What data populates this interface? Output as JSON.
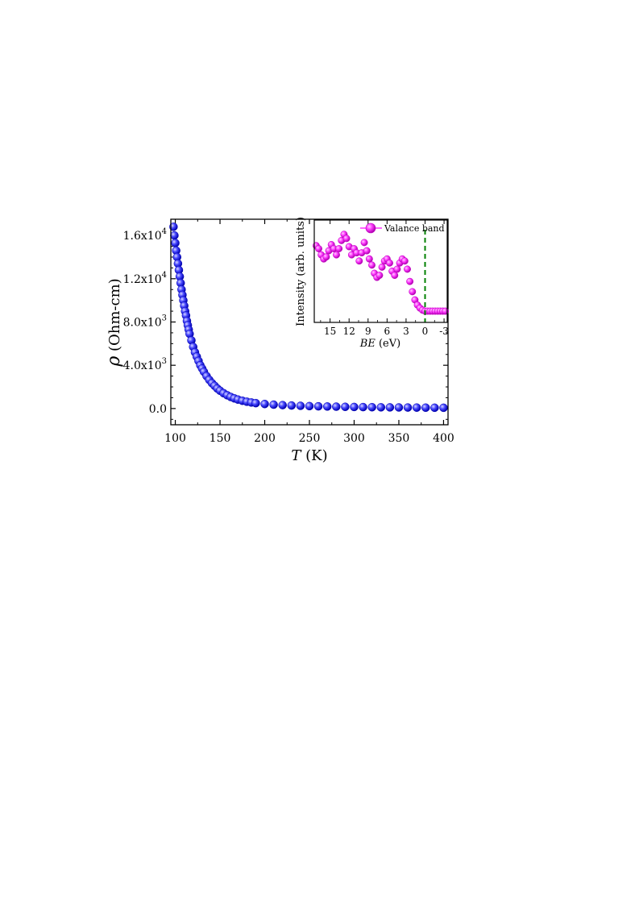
{
  "chart_data": [
    {
      "type": "scatter",
      "xlabel": {
        "italic": "T",
        "rest": " (K)"
      },
      "ylabel": {
        "italic": "ρ",
        "rest": " (Ohm-cm)"
      },
      "xlim": [
        95,
        405
      ],
      "ylim": [
        -1500,
        17500
      ],
      "x_ticks": [
        100,
        150,
        200,
        250,
        300,
        350,
        400
      ],
      "x_tick_labels": [
        "100",
        "150",
        "200",
        "250",
        "300",
        "350",
        "400"
      ],
      "y_ticks": [
        0,
        4000,
        8000,
        12000,
        16000
      ],
      "y_tick_labels": [
        {
          "mantissa": "0.0",
          "exp": ""
        },
        {
          "mantissa": "4.0x10",
          "exp": "3"
        },
        {
          "mantissa": "8.0x10",
          "exp": "3"
        },
        {
          "mantissa": "1.2x10",
          "exp": "4"
        },
        {
          "mantissa": "1.6x10",
          "exp": "4"
        }
      ],
      "marker_color": "#1a1aff",
      "marker_edge": "#0000b0",
      "series": [
        {
          "x": [
            98,
            99,
            100,
            101,
            102,
            103,
            104,
            105,
            106,
            107,
            108,
            109,
            110,
            111,
            112,
            113,
            114,
            115,
            116,
            118,
            120,
            122,
            124,
            126,
            128,
            130,
            132,
            135,
            138,
            141,
            144,
            147,
            150,
            154,
            158,
            162,
            166,
            170,
            175,
            180,
            185,
            190,
            200,
            210,
            220,
            230,
            240,
            250,
            260,
            270,
            280,
            290,
            300,
            310,
            320,
            330,
            340,
            350,
            360,
            370,
            380,
            390,
            400
          ],
          "y": [
            16800,
            16000,
            15300,
            14600,
            14000,
            13400,
            12800,
            12200,
            11600,
            11000,
            10500,
            10000,
            9500,
            9000,
            8600,
            8100,
            7700,
            7300,
            6900,
            6300,
            5700,
            5200,
            4800,
            4400,
            4000,
            3700,
            3400,
            3000,
            2650,
            2350,
            2100,
            1850,
            1650,
            1420,
            1230,
            1070,
            940,
            830,
            720,
            630,
            560,
            500,
            420,
            360,
            315,
            280,
            250,
            225,
            205,
            188,
            172,
            158,
            145,
            134,
            124,
            115,
            107,
            100,
            93,
            87,
            81,
            76,
            72
          ]
        }
      ]
    },
    {
      "type": "line",
      "xlabel": {
        "italic": "BE",
        "rest": " (eV)"
      },
      "ylabel": "Intensity (arb. units)",
      "x_reversed": true,
      "xlim": [
        17.5,
        -3.5
      ],
      "ylim": [
        0,
        1
      ],
      "x_ticks": [
        15,
        12,
        9,
        6,
        3,
        0,
        -3
      ],
      "x_tick_labels": [
        "15",
        "12",
        "9",
        "6",
        "3",
        "0",
        "-3"
      ],
      "legend": {
        "label": "Valance band",
        "position": "top-right"
      },
      "fermi_line": {
        "x": 0,
        "color": "#008000",
        "style": "dashed"
      },
      "marker_color": "#ff33ff",
      "marker_edge": "#c000c0",
      "series": [
        {
          "name": "Valance band",
          "x": [
            17.2,
            16.8,
            16.4,
            16,
            15.6,
            15.2,
            14.8,
            14.4,
            14,
            13.6,
            13.2,
            12.8,
            12.4,
            12,
            11.6,
            11.2,
            10.8,
            10.4,
            10,
            9.6,
            9.2,
            8.8,
            8.4,
            8,
            7.6,
            7.2,
            6.8,
            6.4,
            6,
            5.6,
            5.2,
            4.8,
            4.4,
            4,
            3.6,
            3.2,
            2.8,
            2.4,
            2,
            1.6,
            1.2,
            0.8,
            0.4,
            0,
            -0.4,
            -0.8,
            -1.2,
            -1.6,
            -2,
            -2.4,
            -2.8,
            -3.2
          ],
          "y": [
            0.75,
            0.72,
            0.66,
            0.62,
            0.64,
            0.7,
            0.76,
            0.72,
            0.66,
            0.72,
            0.8,
            0.86,
            0.82,
            0.74,
            0.66,
            0.72,
            0.68,
            0.6,
            0.68,
            0.78,
            0.7,
            0.62,
            0.56,
            0.48,
            0.44,
            0.46,
            0.54,
            0.6,
            0.62,
            0.58,
            0.5,
            0.46,
            0.52,
            0.58,
            0.62,
            0.6,
            0.52,
            0.4,
            0.3,
            0.22,
            0.17,
            0.14,
            0.12,
            0.11,
            0.11,
            0.11,
            0.11,
            0.11,
            0.11,
            0.11,
            0.11,
            0.11
          ]
        }
      ]
    }
  ]
}
